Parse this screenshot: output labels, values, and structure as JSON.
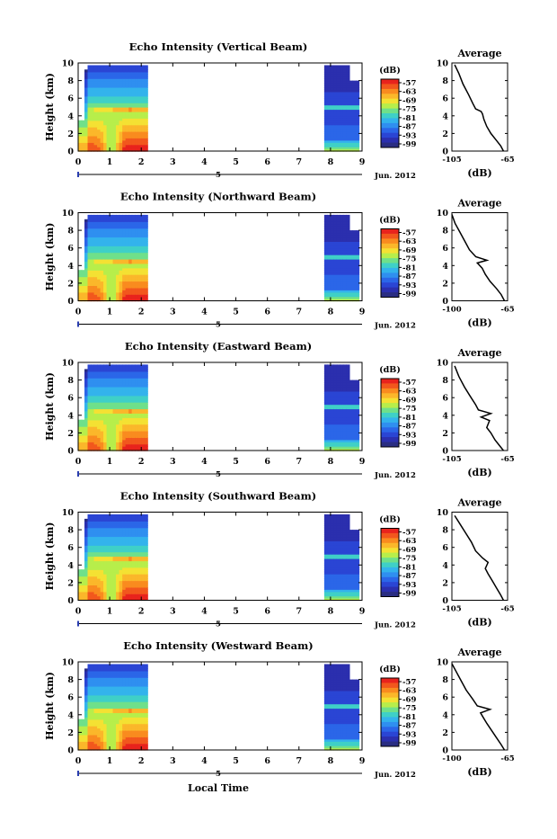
{
  "chart_data": {
    "type": "heatmap",
    "xlabel_bottom": "Local Time",
    "date_label": "Jun. 2012",
    "date_day_label": "5",
    "ylabel": "Height (km)",
    "xlim": [
      0,
      9
    ],
    "xticks": [
      "0",
      "1",
      "2",
      "3",
      "4",
      "5",
      "6",
      "7",
      "8",
      "9"
    ],
    "ylim": [
      0,
      10
    ],
    "yticks": [
      "0",
      "2",
      "4",
      "6",
      "8",
      "10"
    ],
    "data_segments": [
      [
        0.0,
        2.2
      ],
      [
        7.8,
        8.9
      ]
    ],
    "colorbar": {
      "unit_label": "(dB)",
      "ticks": [
        "-57",
        "-63",
        "-69",
        "-75",
        "-81",
        "-87",
        "-93",
        "-99"
      ],
      "colors": [
        "#e8231d",
        "#f2571d",
        "#f98b1f",
        "#fbb72a",
        "#f4e133",
        "#b7ee4b",
        "#6fe08a",
        "#3fd0c7",
        "#33b3ec",
        "#2f8ff0",
        "#2b66e8",
        "#2a45d4",
        "#2b2fae",
        "#2a2d82"
      ]
    },
    "panels": [
      {
        "title": "Echo Intensity (Vertical Beam)",
        "avg_title": "Average",
        "avg_xlabel": "(dB)",
        "avg_xlim": [
          -105,
          -65
        ],
        "avg_xticks": [
          "-105",
          "-65"
        ],
        "bright_layer_km": 4.6,
        "avg_profile": [
          [
            -68,
            0
          ],
          [
            -70,
            0.6
          ],
          [
            -73,
            1.2
          ],
          [
            -77,
            2
          ],
          [
            -80,
            2.8
          ],
          [
            -82,
            3.6
          ],
          [
            -83,
            4.2
          ],
          [
            -84,
            4.5
          ],
          [
            -88,
            4.8
          ],
          [
            -90,
            5.4
          ],
          [
            -93,
            6.4
          ],
          [
            -97,
            7.6
          ],
          [
            -100,
            8.8
          ],
          [
            -103,
            9.8
          ]
        ]
      },
      {
        "title": "Echo Intensity (Northward Beam)",
        "avg_title": "Average",
        "avg_xlabel": "(dB)",
        "avg_xlim": [
          -100,
          -65
        ],
        "avg_xticks": [
          "-100",
          "-65"
        ],
        "bright_layer_km": 4.4,
        "avg_profile": [
          [
            -67,
            0
          ],
          [
            -69,
            0.7
          ],
          [
            -72,
            1.4
          ],
          [
            -76,
            2.2
          ],
          [
            -79,
            3
          ],
          [
            -81,
            3.7
          ],
          [
            -84,
            4.3
          ],
          [
            -78,
            4.6
          ],
          [
            -85,
            5
          ],
          [
            -89,
            5.8
          ],
          [
            -92,
            6.8
          ],
          [
            -95,
            7.8
          ],
          [
            -98,
            8.8
          ],
          [
            -100,
            9.8
          ]
        ]
      },
      {
        "title": "Echo Intensity (Eastward Beam)",
        "avg_title": "Average",
        "avg_xlabel": "(dB)",
        "avg_xlim": [
          -105,
          -65
        ],
        "avg_xticks": [
          "-105",
          "-65"
        ],
        "bright_layer_km": 4.4,
        "avg_profile": [
          [
            -68,
            0
          ],
          [
            -71,
            0.6
          ],
          [
            -74,
            1.2
          ],
          [
            -77,
            2
          ],
          [
            -80,
            2.6
          ],
          [
            -78,
            3.4
          ],
          [
            -84,
            3.8
          ],
          [
            -77,
            4.2
          ],
          [
            -86,
            4.6
          ],
          [
            -88,
            5.2
          ],
          [
            -92,
            6.2
          ],
          [
            -96,
            7.2
          ],
          [
            -100,
            8.4
          ],
          [
            -103,
            9.6
          ]
        ]
      },
      {
        "title": "Echo Intensity (Southward Beam)",
        "avg_title": "Average",
        "avg_xlabel": "(dB)",
        "avg_xlim": [
          -105,
          -65
        ],
        "avg_xticks": [
          "-105",
          "-65"
        ],
        "bright_layer_km": 4.6,
        "avg_profile": [
          [
            -68,
            0
          ],
          [
            -70,
            0.6
          ],
          [
            -73,
            1.4
          ],
          [
            -76,
            2.2
          ],
          [
            -79,
            3
          ],
          [
            -81,
            3.6
          ],
          [
            -79,
            4.3
          ],
          [
            -83,
            4.8
          ],
          [
            -88,
            5.6
          ],
          [
            -91,
            6.6
          ],
          [
            -95,
            7.6
          ],
          [
            -99,
            8.6
          ],
          [
            -103,
            9.6
          ]
        ]
      },
      {
        "title": "Echo Intensity (Westward Beam)",
        "avg_title": "Average",
        "avg_xlabel": "(dB)",
        "avg_xlim": [
          -100,
          -65
        ],
        "avg_xticks": [
          "-100",
          "-65"
        ],
        "bright_layer_km": 4.4,
        "avg_profile": [
          [
            -67,
            0
          ],
          [
            -69,
            0.6
          ],
          [
            -72,
            1.4
          ],
          [
            -75,
            2.2
          ],
          [
            -78,
            3
          ],
          [
            -80,
            3.6
          ],
          [
            -82,
            4.2
          ],
          [
            -76,
            4.6
          ],
          [
            -84,
            5
          ],
          [
            -87,
            5.8
          ],
          [
            -91,
            6.8
          ],
          [
            -94,
            7.8
          ],
          [
            -97,
            8.8
          ],
          [
            -100,
            9.8
          ]
        ]
      }
    ]
  }
}
